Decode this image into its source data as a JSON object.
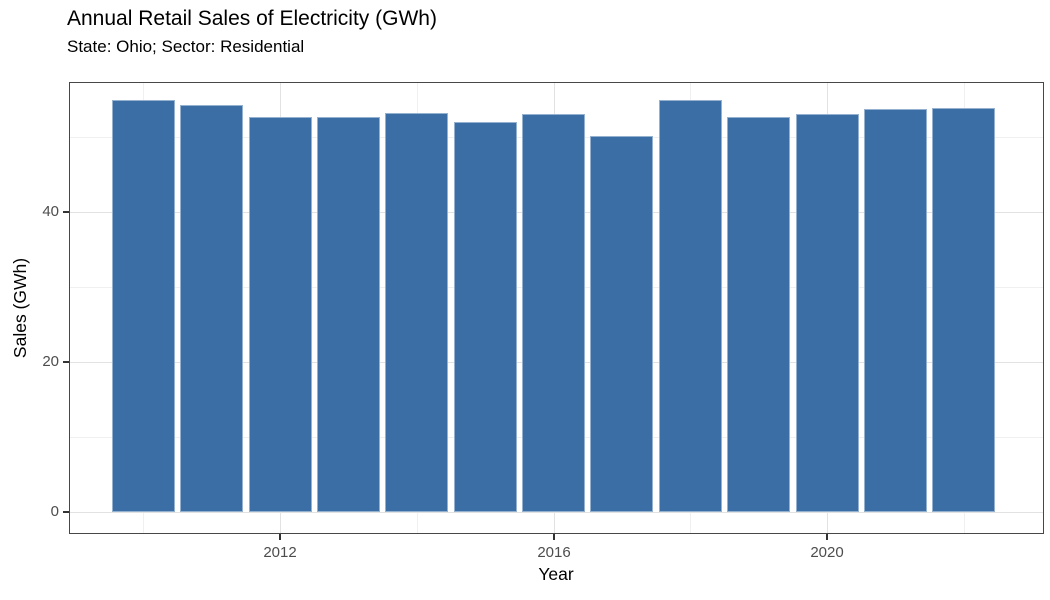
{
  "chart_data": {
    "type": "bar",
    "title": "Annual Retail Sales of Electricity (GWh)",
    "subtitle": "State: Ohio; Sector: Residential",
    "xlabel": "Year",
    "ylabel": "Sales (GWh)",
    "categories": [
      2010,
      2011,
      2012,
      2013,
      2014,
      2015,
      2016,
      2017,
      2018,
      2019,
      2020,
      2021,
      2022
    ],
    "values": [
      54.9,
      54.2,
      52.7,
      52.6,
      53.2,
      52.0,
      53.1,
      50.1,
      54.9,
      52.6,
      53.0,
      53.7,
      53.8
    ],
    "x_ticks": [
      "2012",
      "2016",
      "2020"
    ],
    "y_ticks": [
      "0",
      "20",
      "40"
    ],
    "x_tick_years": [
      2012,
      2016,
      2020
    ],
    "y_tick_values": [
      0,
      20,
      40
    ],
    "y_minor_values": [
      10,
      30,
      50
    ],
    "x_minor_years": [
      2010,
      2014,
      2018,
      2022
    ],
    "ylim": [
      0,
      57.5
    ],
    "grid": true,
    "legend": "none",
    "bar_color": "#3a6ea5",
    "bar_border_color": "#94b2cf",
    "tick_label_color": "#4d4d4d",
    "panel_border_color": "#474747",
    "gridline_major_color": "#e2e2e2",
    "gridline_minor_color": "#f0f0f0"
  }
}
